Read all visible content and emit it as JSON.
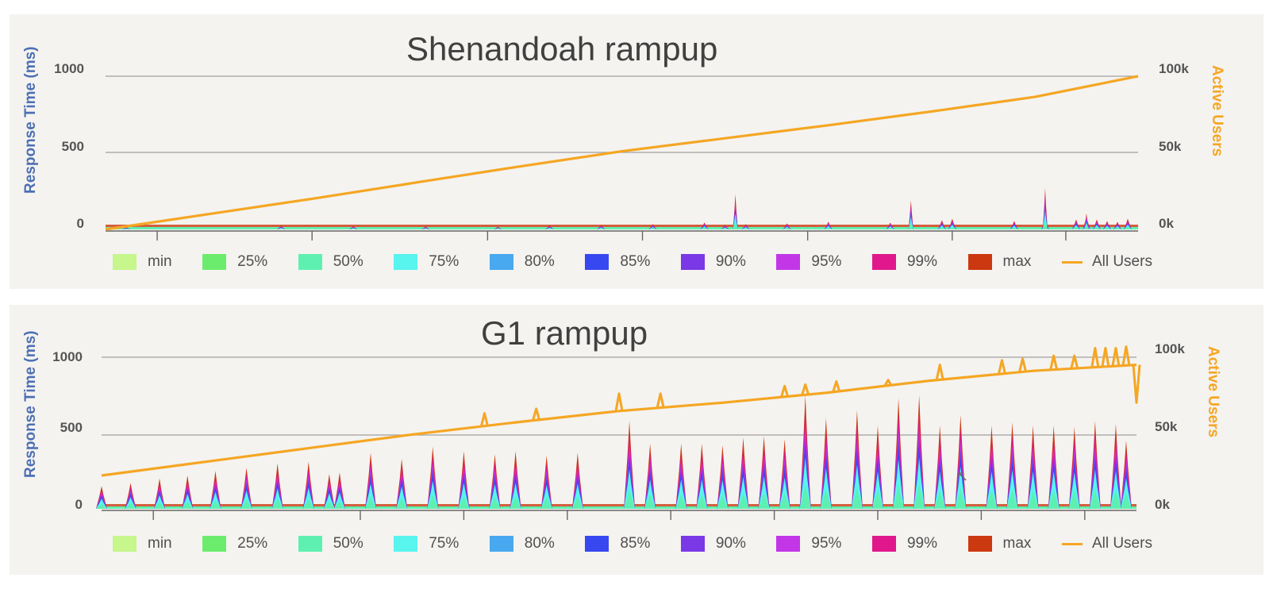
{
  "legend": [
    {
      "label": "min",
      "color": "#c6f68c"
    },
    {
      "label": "25%",
      "color": "#6cec6c"
    },
    {
      "label": "50%",
      "color": "#5ef0b0"
    },
    {
      "label": "75%",
      "color": "#58f4ee"
    },
    {
      "label": "80%",
      "color": "#48a8f0"
    },
    {
      "label": "85%",
      "color": "#3848f0"
    },
    {
      "label": "90%",
      "color": "#7a38e6"
    },
    {
      "label": "95%",
      "color": "#c236e8"
    },
    {
      "label": "99%",
      "color": "#e0188c"
    },
    {
      "label": "max",
      "color": "#cc3810"
    },
    {
      "label": "All Users",
      "color": "#f5a623",
      "style": "line"
    }
  ],
  "chart_data": [
    {
      "type": "area",
      "title": "Shenandoah rampup",
      "ylabel": "Response Time (ms)",
      "y2label": "Active Users",
      "ylim": [
        0,
        1000
      ],
      "y2lim": [
        0,
        100000
      ],
      "yticks": [
        "1000",
        "500",
        "0"
      ],
      "y2ticks": [
        "100k",
        "50k",
        "0k"
      ],
      "grid": true,
      "legend_position": "bottom",
      "series": [
        {
          "name": "All Users",
          "kind": "line",
          "axis": "right",
          "x": [
            0,
            10,
            20,
            30,
            40,
            50,
            60,
            70,
            80,
            90,
            100
          ],
          "values": [
            0,
            10000,
            20000,
            30500,
            41000,
            51000,
            59500,
            68000,
            77000,
            86500,
            100000
          ]
        },
        {
          "name": "max",
          "kind": "spikes",
          "spikes": [
            [
              2,
              15
            ],
            [
              17,
              25
            ],
            [
              24,
              22
            ],
            [
              31,
              20
            ],
            [
              38,
              18
            ],
            [
              43,
              28
            ],
            [
              48,
              30
            ],
            [
              53,
              35
            ],
            [
              58,
              45
            ],
            [
              60,
              30
            ],
            [
              62,
              35
            ],
            [
              66,
              40
            ],
            [
              70,
              50
            ],
            [
              76,
              45
            ],
            [
              81,
              60
            ],
            [
              82,
              70
            ],
            [
              88,
              55
            ],
            [
              91,
              60
            ],
            [
              94,
              65
            ],
            [
              95,
              80
            ],
            [
              96,
              65
            ],
            [
              97,
              55
            ],
            [
              98,
              50
            ],
            [
              99,
              70
            ]
          ],
          "tall_spikes": [
            [
              61,
              230
            ],
            [
              78,
              190
            ],
            [
              91,
              270
            ],
            [
              95,
              105
            ]
          ]
        }
      ]
    },
    {
      "type": "area",
      "title": "G1 rampup",
      "ylabel": "Response Time (ms)",
      "y2label": "Active Users",
      "ylim": [
        0,
        1000
      ],
      "y2lim": [
        0,
        100000
      ],
      "yticks": [
        "1000",
        "500",
        "0"
      ],
      "y2ticks": [
        "100k",
        "50k",
        "0k"
      ],
      "grid": true,
      "legend_position": "bottom",
      "series": [
        {
          "name": "All Users",
          "kind": "line",
          "axis": "right",
          "x": [
            0,
            10,
            20,
            30,
            40,
            50,
            60,
            70,
            80,
            90,
            100
          ],
          "values": [
            22000,
            31000,
            40000,
            49000,
            57000,
            64500,
            70000,
            76500,
            84500,
            91000,
            95000
          ],
          "spikes": [
            [
              37,
              63000
            ],
            [
              42,
              66000
            ],
            [
              50,
              76000
            ],
            [
              54,
              76000
            ],
            [
              66,
              81000
            ],
            [
              68,
              82000
            ],
            [
              71,
              84000
            ],
            [
              76,
              85000
            ],
            [
              81,
              95000
            ],
            [
              87,
              98000
            ],
            [
              89,
              99000
            ],
            [
              92,
              101000
            ],
            [
              94,
              101000
            ],
            [
              96,
              106000
            ],
            [
              97,
              106000
            ],
            [
              98,
              106000
            ],
            [
              99,
              107000
            ],
            [
              100,
              70000
            ]
          ]
        },
        {
          "name": "max",
          "kind": "spikes",
          "spikes": [
            [
              0,
              150
            ],
            [
              2.8,
              170
            ],
            [
              5.6,
              200
            ],
            [
              8.3,
              220
            ],
            [
              11,
              250
            ],
            [
              14,
              270
            ],
            [
              17,
              300
            ],
            [
              20,
              310
            ],
            [
              22,
              230
            ],
            [
              23,
              240
            ],
            [
              26,
              370
            ],
            [
              29,
              330
            ],
            [
              32,
              410
            ],
            [
              35,
              380
            ],
            [
              38,
              360
            ],
            [
              40,
              380
            ],
            [
              43,
              350
            ],
            [
              46,
              370
            ],
            [
              51,
              580
            ],
            [
              53,
              430
            ],
            [
              56,
              430
            ],
            [
              58,
              430
            ],
            [
              60,
              420
            ],
            [
              62,
              470
            ],
            [
              64,
              480
            ],
            [
              66,
              460
            ],
            [
              68,
              750
            ],
            [
              70,
              600
            ],
            [
              73,
              650
            ],
            [
              75,
              550
            ],
            [
              77,
              730
            ],
            [
              79,
              750
            ],
            [
              81,
              550
            ],
            [
              83,
              620
            ],
            [
              86,
              550
            ],
            [
              88,
              570
            ],
            [
              90,
              550
            ],
            [
              92,
              550
            ],
            [
              94,
              540
            ],
            [
              96,
              580
            ],
            [
              98,
              560
            ],
            [
              99,
              450
            ]
          ]
        }
      ]
    }
  ]
}
